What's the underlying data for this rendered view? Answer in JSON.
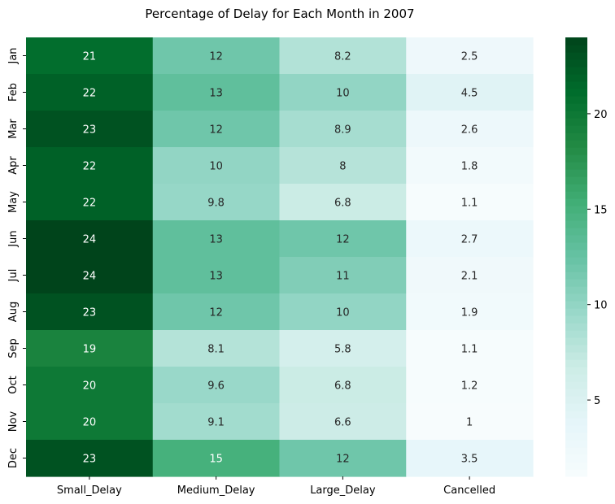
{
  "chart_data": {
    "type": "heatmap",
    "title": "Percentage of Delay for Each Month in 2007",
    "xlabel": "",
    "ylabel": "",
    "columns": [
      "Small_Delay",
      "Medium_Delay",
      "Large_Delay",
      "Cancelled"
    ],
    "rows": [
      "Jan",
      "Feb",
      "Mar",
      "Apr",
      "May",
      "Jun",
      "Jul",
      "Aug",
      "Sep",
      "Oct",
      "Nov",
      "Dec"
    ],
    "values": [
      [
        21,
        12,
        8.2,
        2.5
      ],
      [
        22,
        13,
        10,
        4.5
      ],
      [
        23,
        12,
        8.9,
        2.6
      ],
      [
        22,
        10,
        8,
        1.8
      ],
      [
        22,
        9.8,
        6.8,
        1.1
      ],
      [
        24,
        13,
        12,
        2.7
      ],
      [
        24,
        13,
        11,
        2.1
      ],
      [
        23,
        12,
        10,
        1.9
      ],
      [
        19,
        8.1,
        5.8,
        1.1
      ],
      [
        20,
        9.6,
        6.8,
        1.2
      ],
      [
        20,
        9.1,
        6.6,
        1
      ],
      [
        23,
        15,
        12,
        3.5
      ]
    ],
    "colormap": "BuGn",
    "color_range": [
      1,
      24
    ],
    "colorbar_ticks": [
      5,
      10,
      15,
      20
    ],
    "annotations": true,
    "grid": false
  }
}
